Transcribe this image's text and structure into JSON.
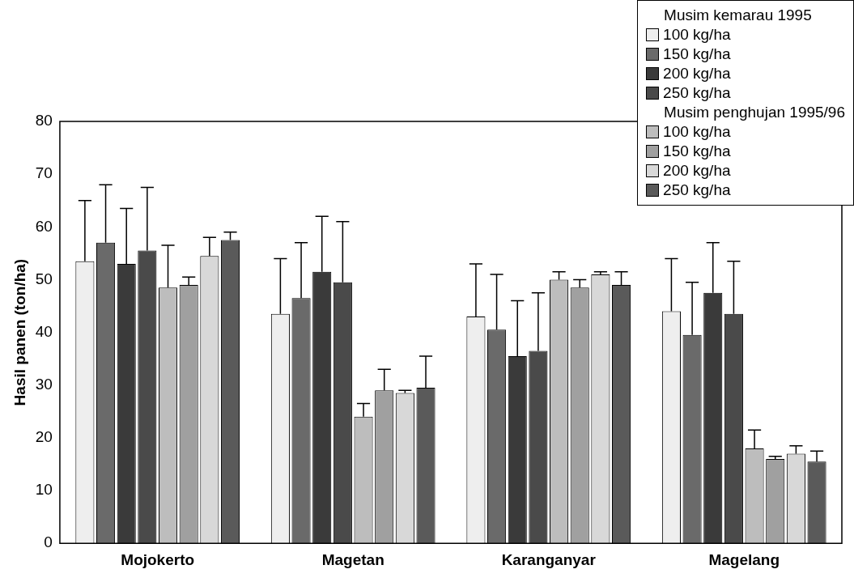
{
  "chart_data": {
    "type": "bar",
    "ylabel": "Hasil panen (ton/ha)",
    "categories": [
      "Mojokerto",
      "Magetan",
      "Karanganyar",
      "Magelang"
    ],
    "ylim": [
      0,
      80
    ],
    "yticks": [
      0,
      10,
      20,
      30,
      40,
      50,
      60,
      70,
      80
    ],
    "grid": false,
    "legend": "top right",
    "annotations": [
      "Musim kemarau 1995",
      "Musim penghujan 1995/96"
    ],
    "series": [
      {
        "name": "100 kg/ha",
        "color": "#eeeeee",
        "values": [
          53.5,
          43.5,
          43,
          44
        ],
        "errors": [
          [
            53.5,
            65
          ],
          [
            43.5,
            54
          ],
          [
            43,
            53
          ],
          [
            44,
            54
          ]
        ]
      },
      {
        "name": "150 kg/ha",
        "color": "#6a6a6a",
        "values": [
          57,
          46.5,
          40.5,
          39.5
        ],
        "errors": [
          [
            57,
            68
          ],
          [
            46.5,
            57
          ],
          [
            40.5,
            51
          ],
          [
            39.5,
            49.5
          ]
        ]
      },
      {
        "name": "200 kg/ha",
        "color": "#3a3a3a",
        "values": [
          53,
          51.5,
          35.5,
          47.5
        ],
        "errors": [
          [
            53,
            63.5
          ],
          [
            51.5,
            62
          ],
          [
            35.5,
            46
          ],
          [
            47.5,
            57
          ]
        ]
      },
      {
        "name": "250 kg/ha",
        "color": "#4a4a4a",
        "values": [
          55.5,
          49.5,
          36.5,
          43.5
        ],
        "errors": [
          [
            55.5,
            67.5
          ],
          [
            49.5,
            61
          ],
          [
            36.5,
            47.5
          ],
          [
            43.5,
            53.5
          ]
        ]
      },
      {
        "name": "100 kg/ha",
        "color": "#bdbdbd",
        "values": [
          48.5,
          24,
          50,
          18
        ],
        "errors": [
          [
            48.5,
            56.5
          ],
          [
            24,
            26.5
          ],
          [
            50,
            51.5
          ],
          [
            18,
            21.5
          ]
        ]
      },
      {
        "name": "150 kg/ha",
        "color": "#a0a0a0",
        "values": [
          49,
          29,
          48.5,
          16
        ],
        "errors": [
          [
            49,
            50.5
          ],
          [
            29,
            33
          ],
          [
            48.5,
            50
          ],
          [
            16,
            16.5
          ]
        ]
      },
      {
        "name": "200 kg/ha",
        "color": "#d8d8d8",
        "values": [
          54.5,
          28.5,
          51,
          17
        ],
        "errors": [
          [
            54.5,
            58
          ],
          [
            28.5,
            29
          ],
          [
            51,
            51.5
          ],
          [
            17,
            18.5
          ]
        ]
      },
      {
        "name": "250 kg/ha",
        "color": "#5a5a5a",
        "values": [
          57.5,
          29.5,
          49,
          15.5
        ],
        "errors": [
          [
            57.5,
            59
          ],
          [
            29.5,
            35.5
          ],
          [
            49,
            51.5
          ],
          [
            15.5,
            17.5
          ]
        ]
      }
    ]
  }
}
